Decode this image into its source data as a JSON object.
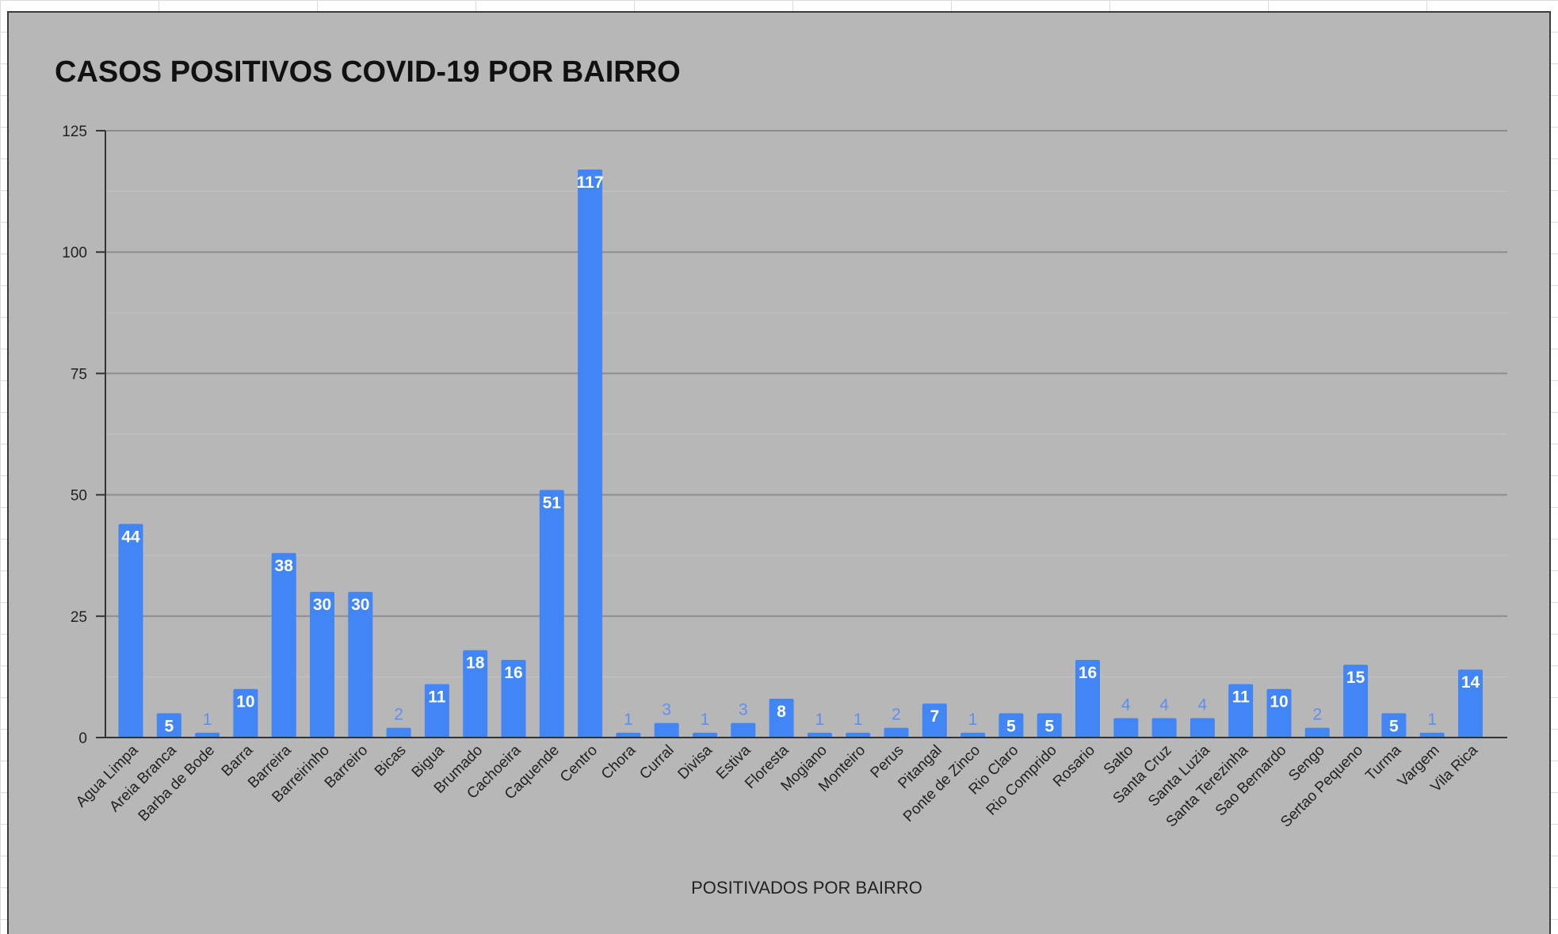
{
  "chart_data": {
    "type": "bar",
    "title": "CASOS POSITIVOS COVID-19 POR BAIRRO",
    "xlabel": "POSITIVADOS POR BAIRRO",
    "ylabel": "",
    "ylim": [
      0,
      125
    ],
    "yticks": [
      0,
      25,
      50,
      75,
      100,
      125
    ],
    "grid": true,
    "legend": "none",
    "bar_color": "#4285f4",
    "categories": [
      "Agua Limpa",
      "Areia Branca",
      "Barba de Bode",
      "Barra",
      "Barreira",
      "Barreirinho",
      "Barreiro",
      "Bicas",
      "Bigua",
      "Brumado",
      "Cachoeira",
      "Caquende",
      "Centro",
      "Chora",
      "Curral",
      "Divisa",
      "Estiva",
      "Floresta",
      "Mogiano",
      "Monteiro",
      "Perus",
      "Pitangal",
      "Ponte de Zinco",
      "Rio Claro",
      "Rio Comprido",
      "Rosario",
      "Salto",
      "Santa Cruz",
      "Santa Luzia",
      "Santa Terezinha",
      "Sao Bernardo",
      "Sengo",
      "Sertao Pequeno",
      "Turma",
      "Vargem",
      "Vila Rica"
    ],
    "values": [
      44,
      5,
      1,
      10,
      38,
      30,
      30,
      2,
      11,
      18,
      16,
      51,
      117,
      1,
      3,
      1,
      3,
      8,
      1,
      1,
      2,
      7,
      1,
      5,
      5,
      16,
      4,
      4,
      4,
      11,
      10,
      2,
      15,
      5,
      1,
      14
    ]
  }
}
